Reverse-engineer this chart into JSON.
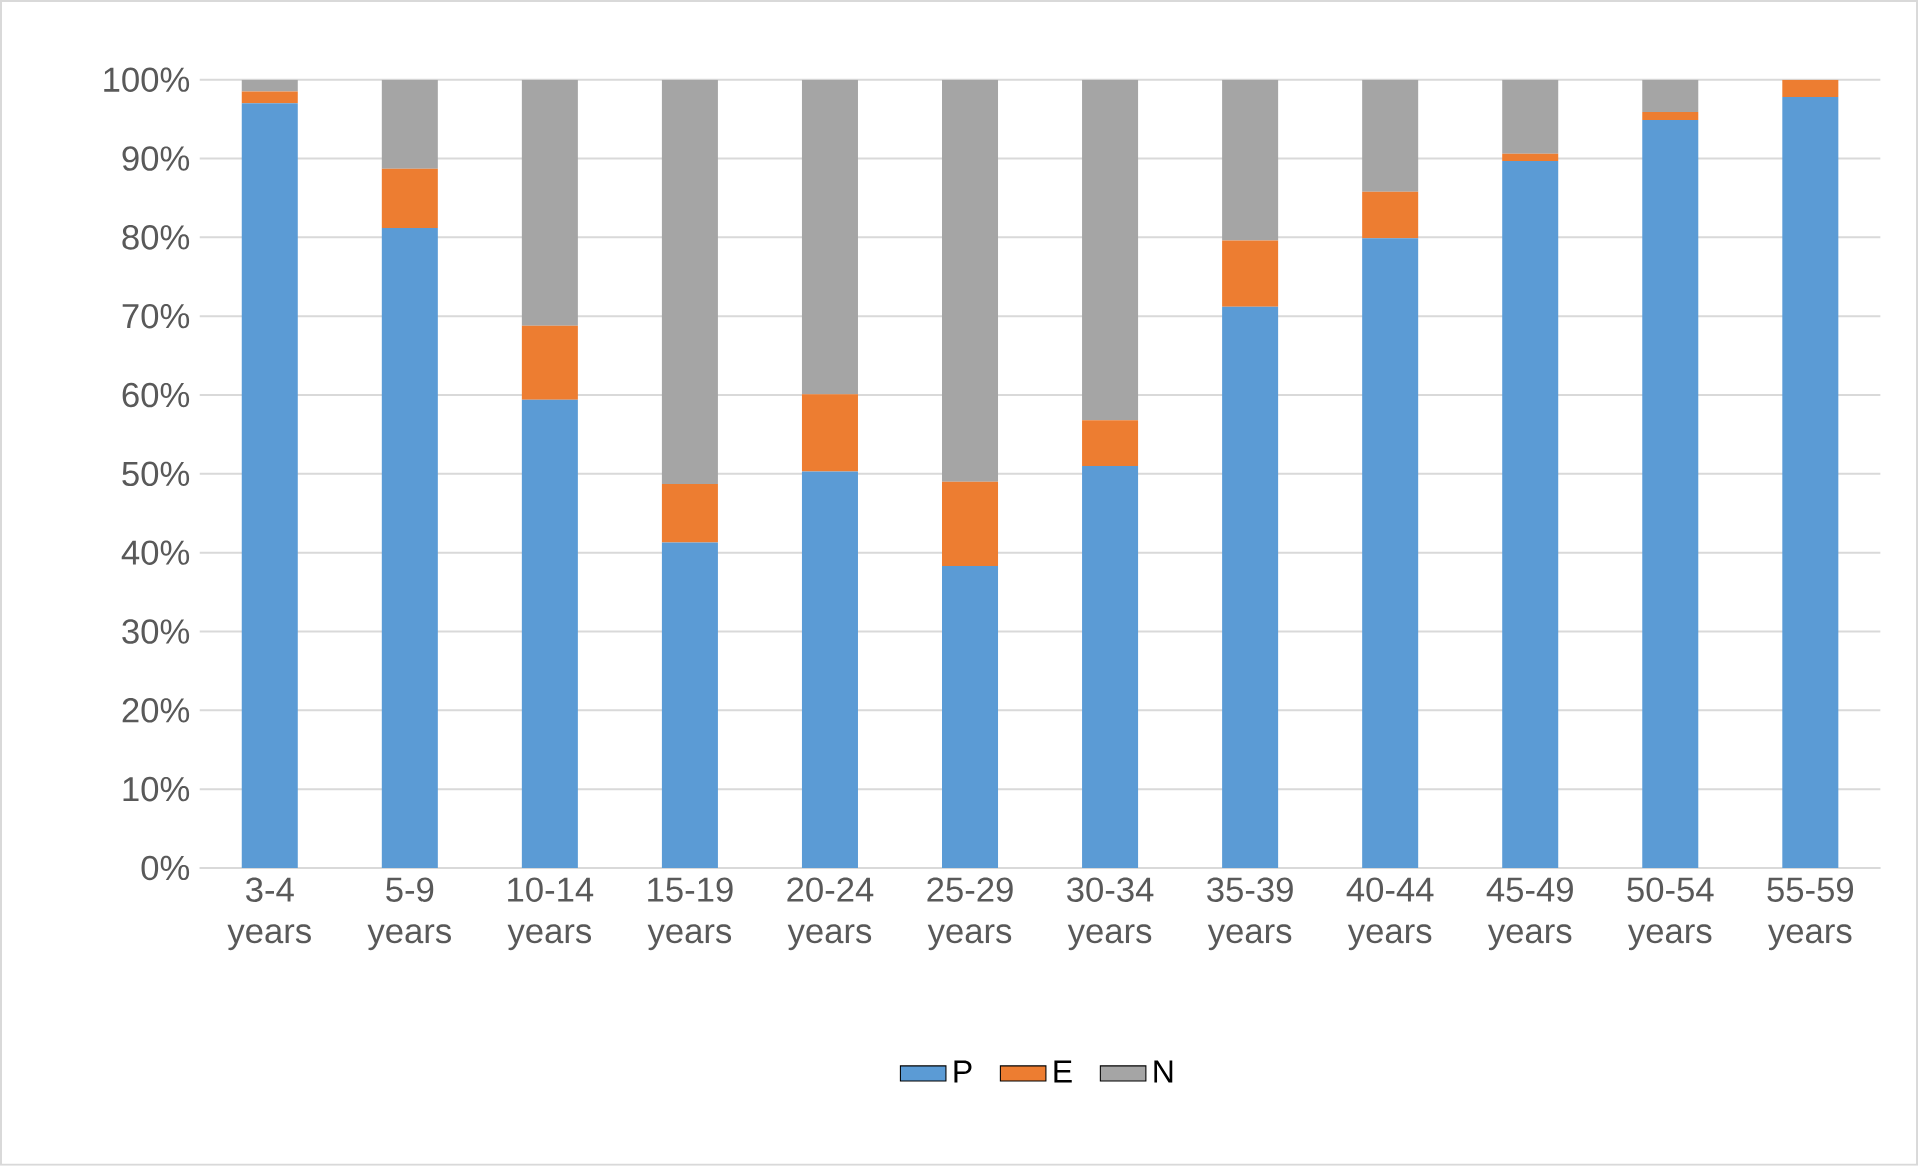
{
  "chart_data": {
    "type": "bar",
    "stacked": true,
    "categories": [
      "3-4 years",
      "5-9 years",
      "10-14 years",
      "15-19 years",
      "20-24 years",
      "25-29 years",
      "30-34 years",
      "35-39 years",
      "40-44 years",
      "45-49 years",
      "50-54 years",
      "55-59 years"
    ],
    "series": [
      {
        "name": "P",
        "color": "#5b9bd5",
        "values": [
          97.0,
          81.2,
          59.4,
          41.3,
          50.3,
          38.3,
          51.0,
          71.2,
          79.9,
          89.7,
          94.9,
          97.8
        ]
      },
      {
        "name": "E",
        "color": "#ed7d31",
        "values": [
          1.5,
          7.5,
          9.4,
          7.4,
          9.8,
          10.7,
          5.8,
          8.4,
          5.9,
          0.9,
          1.0,
          2.2
        ]
      },
      {
        "name": "N",
        "color": "#a5a5a5",
        "values": [
          1.5,
          11.3,
          31.2,
          51.3,
          39.9,
          51.0,
          43.2,
          20.4,
          14.2,
          9.4,
          4.1,
          0.0
        ]
      }
    ],
    "ylim": [
      0,
      100
    ],
    "yticks": [
      {
        "value": 0,
        "label": "0%"
      },
      {
        "value": 10,
        "label": "10%"
      },
      {
        "value": 20,
        "label": "20%"
      },
      {
        "value": 30,
        "label": "30%"
      },
      {
        "value": 40,
        "label": "40%"
      },
      {
        "value": 50,
        "label": "50%"
      },
      {
        "value": 60,
        "label": "60%"
      },
      {
        "value": 70,
        "label": "70%"
      },
      {
        "value": 80,
        "label": "80%"
      },
      {
        "value": 90,
        "label": "90%"
      },
      {
        "value": 100,
        "label": "100%"
      }
    ],
    "grid": "y",
    "legend": "bottom"
  }
}
